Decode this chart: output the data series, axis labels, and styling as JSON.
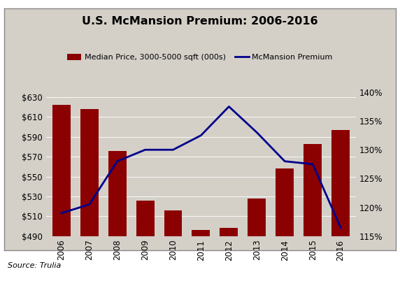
{
  "title": "U.S. McMansion Premium: 2006-2016",
  "years": [
    2006,
    2007,
    2008,
    2009,
    2010,
    2011,
    2012,
    2013,
    2014,
    2015,
    2016
  ],
  "bar_values": [
    622,
    618,
    576,
    526,
    516,
    496,
    498,
    528,
    558,
    583,
    597
  ],
  "line_values": [
    119.0,
    120.5,
    128.0,
    130.0,
    130.0,
    132.5,
    137.5,
    133.0,
    128.0,
    127.5,
    116.5
  ],
  "bar_color": "#8B0000",
  "line_color": "#00008B",
  "bar_label": "Median Price, 3000-5000 sqft (000s)",
  "line_label": "McMansion Premium",
  "left_ylim": [
    490,
    635
  ],
  "right_ylim": [
    115,
    140
  ],
  "left_yticks": [
    490,
    510,
    530,
    550,
    570,
    590,
    610,
    630
  ],
  "right_yticks": [
    115,
    120,
    125,
    130,
    135,
    140
  ],
  "source_text": "Source: Trulia",
  "background_color": "#d4d0c8",
  "figure_background": "#ffffff"
}
